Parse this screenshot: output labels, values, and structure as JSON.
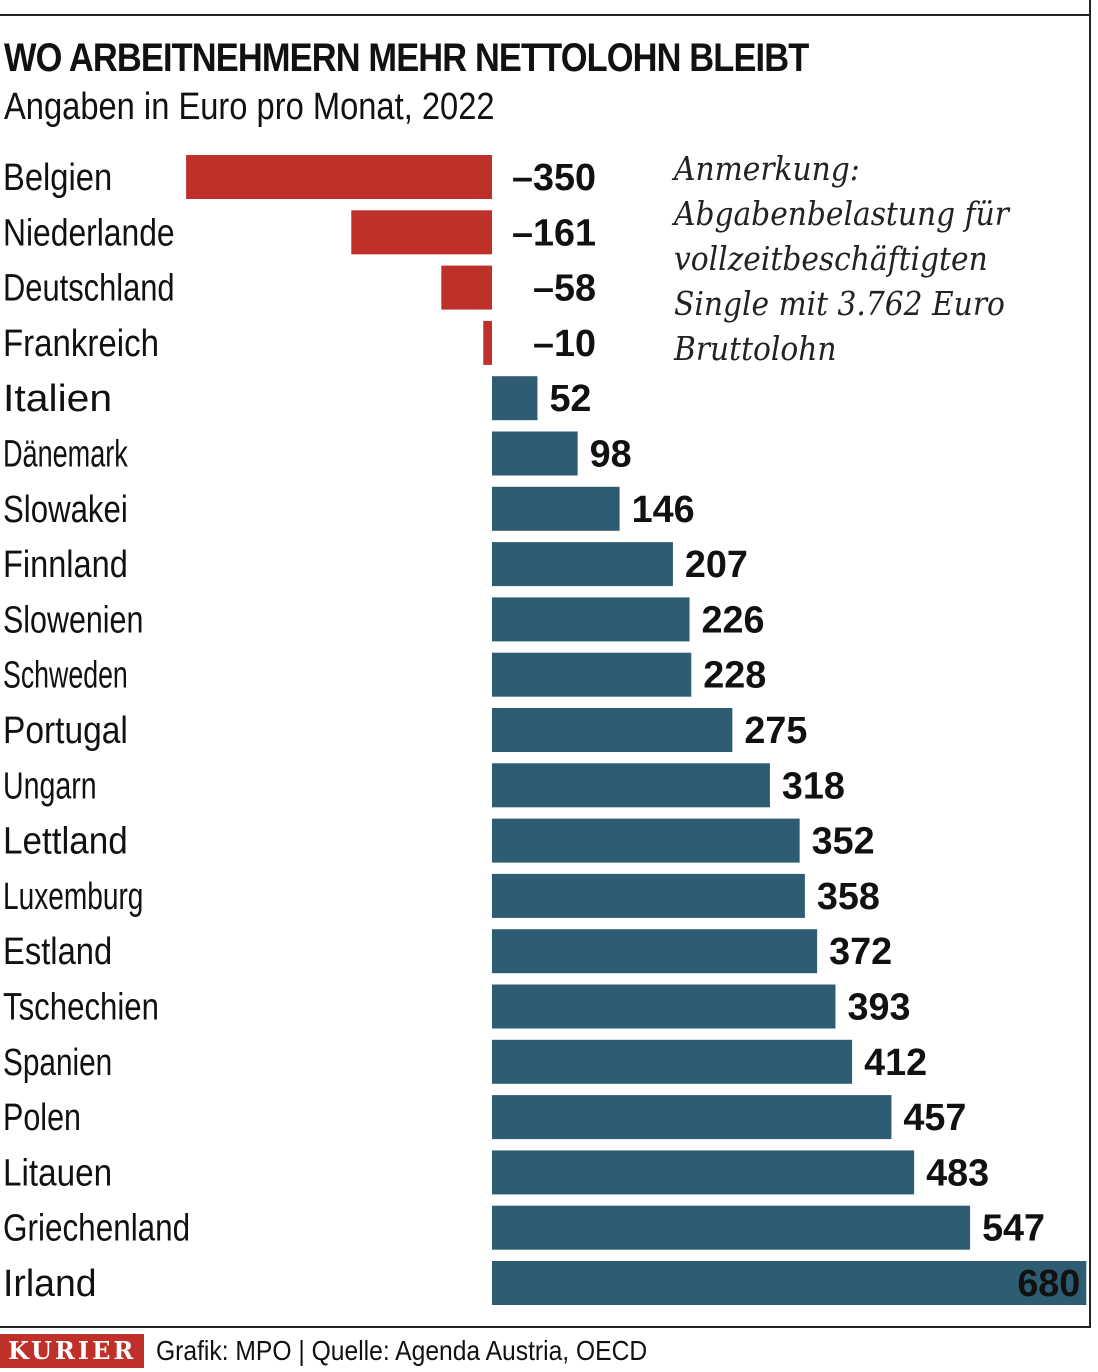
{
  "header": {
    "title": "WO ARBEITNEHMERN MEHR NETTOLOHN BLEIBT",
    "subtitle": "Angaben in Euro pro Monat, 2022"
  },
  "note": {
    "lines": [
      "Anmerkung:",
      "Abgabenbelastung für",
      "vollzeitbeschäftigten",
      "Single mit 3.762 Euro",
      "Bruttolohn"
    ]
  },
  "footer": {
    "logo": "KURIER",
    "credit": "Grafik: MPO | Quelle: Agenda Austria, OECD"
  },
  "colors": {
    "negative": "#c0302b",
    "positive": "#2e5d73",
    "logo": "#c0302b"
  },
  "chart_data": {
    "type": "bar",
    "orientation": "horizontal",
    "categories": [
      "Belgien",
      "Niederlande",
      "Deutschland",
      "Frankreich",
      "Italien",
      "Dänemark",
      "Slowakei",
      "Finnland",
      "Slowenien",
      "Schweden",
      "Portugal",
      "Ungarn",
      "Lettland",
      "Luxemburg",
      "Estland",
      "Tschechien",
      "Spanien",
      "Polen",
      "Litauen",
      "Griechenland",
      "Irland"
    ],
    "values": [
      -350,
      -161,
      -58,
      -10,
      52,
      98,
      146,
      207,
      226,
      228,
      275,
      318,
      352,
      358,
      372,
      393,
      412,
      457,
      483,
      547,
      680
    ],
    "value_labels": [
      "–350",
      "–161",
      "–58",
      "–10",
      "52",
      "98",
      "146",
      "207",
      "226",
      "228",
      "275",
      "318",
      "352",
      "358",
      "372",
      "393",
      "412",
      "457",
      "483",
      "547",
      "680"
    ],
    "xlim": [
      -350,
      680
    ],
    "grid": false
  }
}
